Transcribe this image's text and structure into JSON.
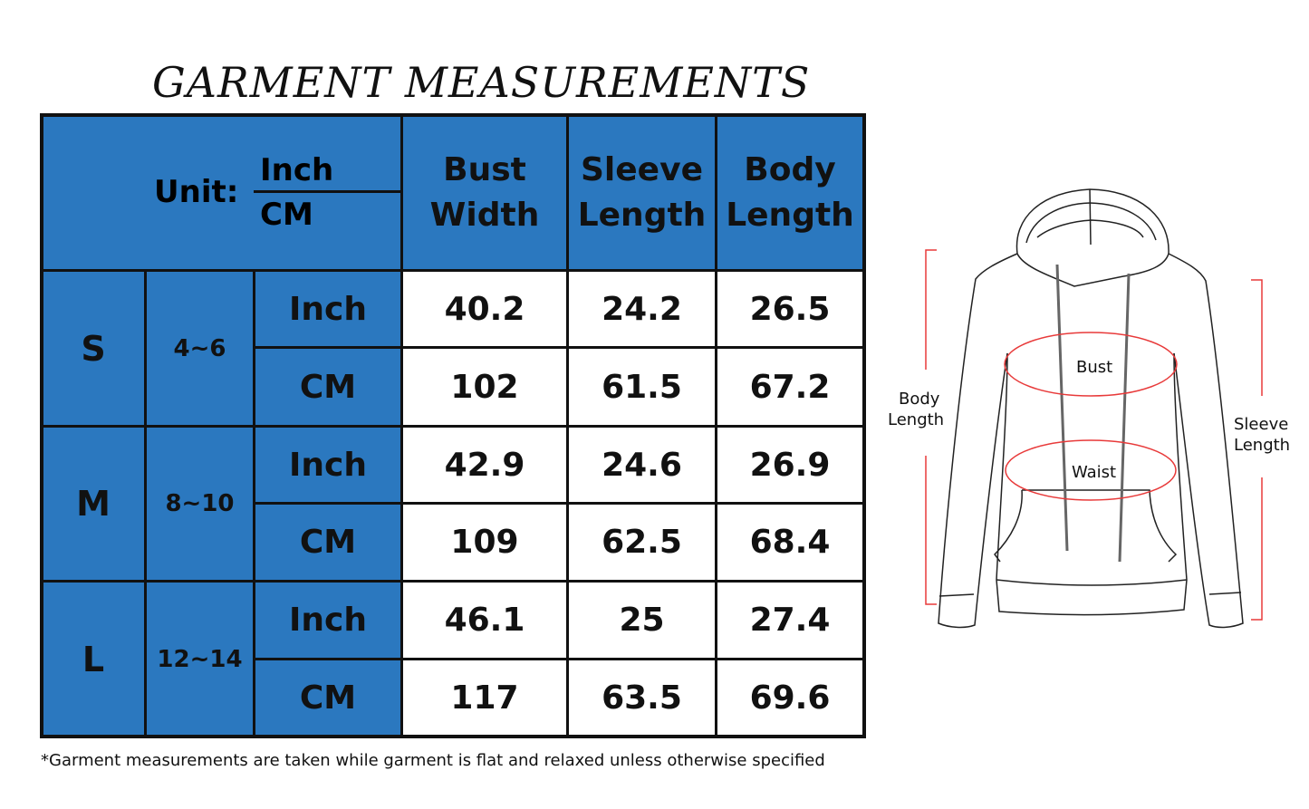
{
  "title": "GARMENT MEASUREMENTS",
  "header": {
    "unit_label": "Unit:",
    "unit_inch": "Inch",
    "unit_cm": "CM",
    "columns": [
      {
        "line1": "Bust",
        "line2": "Width"
      },
      {
        "line1": "Sleeve",
        "line2": "Length"
      },
      {
        "line1": "Body",
        "line2": "Length"
      }
    ]
  },
  "sizes": [
    {
      "size": "S",
      "range": "4~6",
      "rows": [
        {
          "unit": "Inch",
          "values": [
            "40.2",
            "24.2",
            "26.5"
          ]
        },
        {
          "unit": "CM",
          "values": [
            "102",
            "61.5",
            "67.2"
          ]
        }
      ]
    },
    {
      "size": "M",
      "range": "8~10",
      "rows": [
        {
          "unit": "Inch",
          "values": [
            "42.9",
            "24.6",
            "26.9"
          ]
        },
        {
          "unit": "CM",
          "values": [
            "109",
            "62.5",
            "68.4"
          ]
        }
      ]
    },
    {
      "size": "L",
      "range": "12~14",
      "rows": [
        {
          "unit": "Inch",
          "values": [
            "46.1",
            "25",
            "27.4"
          ]
        },
        {
          "unit": "CM",
          "values": [
            "117",
            "63.5",
            "69.6"
          ]
        }
      ]
    }
  ],
  "footnote": "*Garment measurements are taken while garment is flat and relaxed unless otherwise specified",
  "diagram": {
    "bust": "Bust",
    "waist": "Waist",
    "body_length": [
      "Body",
      "Length"
    ],
    "sleeve_length": [
      "Sleeve",
      "Length"
    ]
  },
  "colors": {
    "header_blue": "#2b78bf",
    "measure_red": "#e83a3a"
  }
}
